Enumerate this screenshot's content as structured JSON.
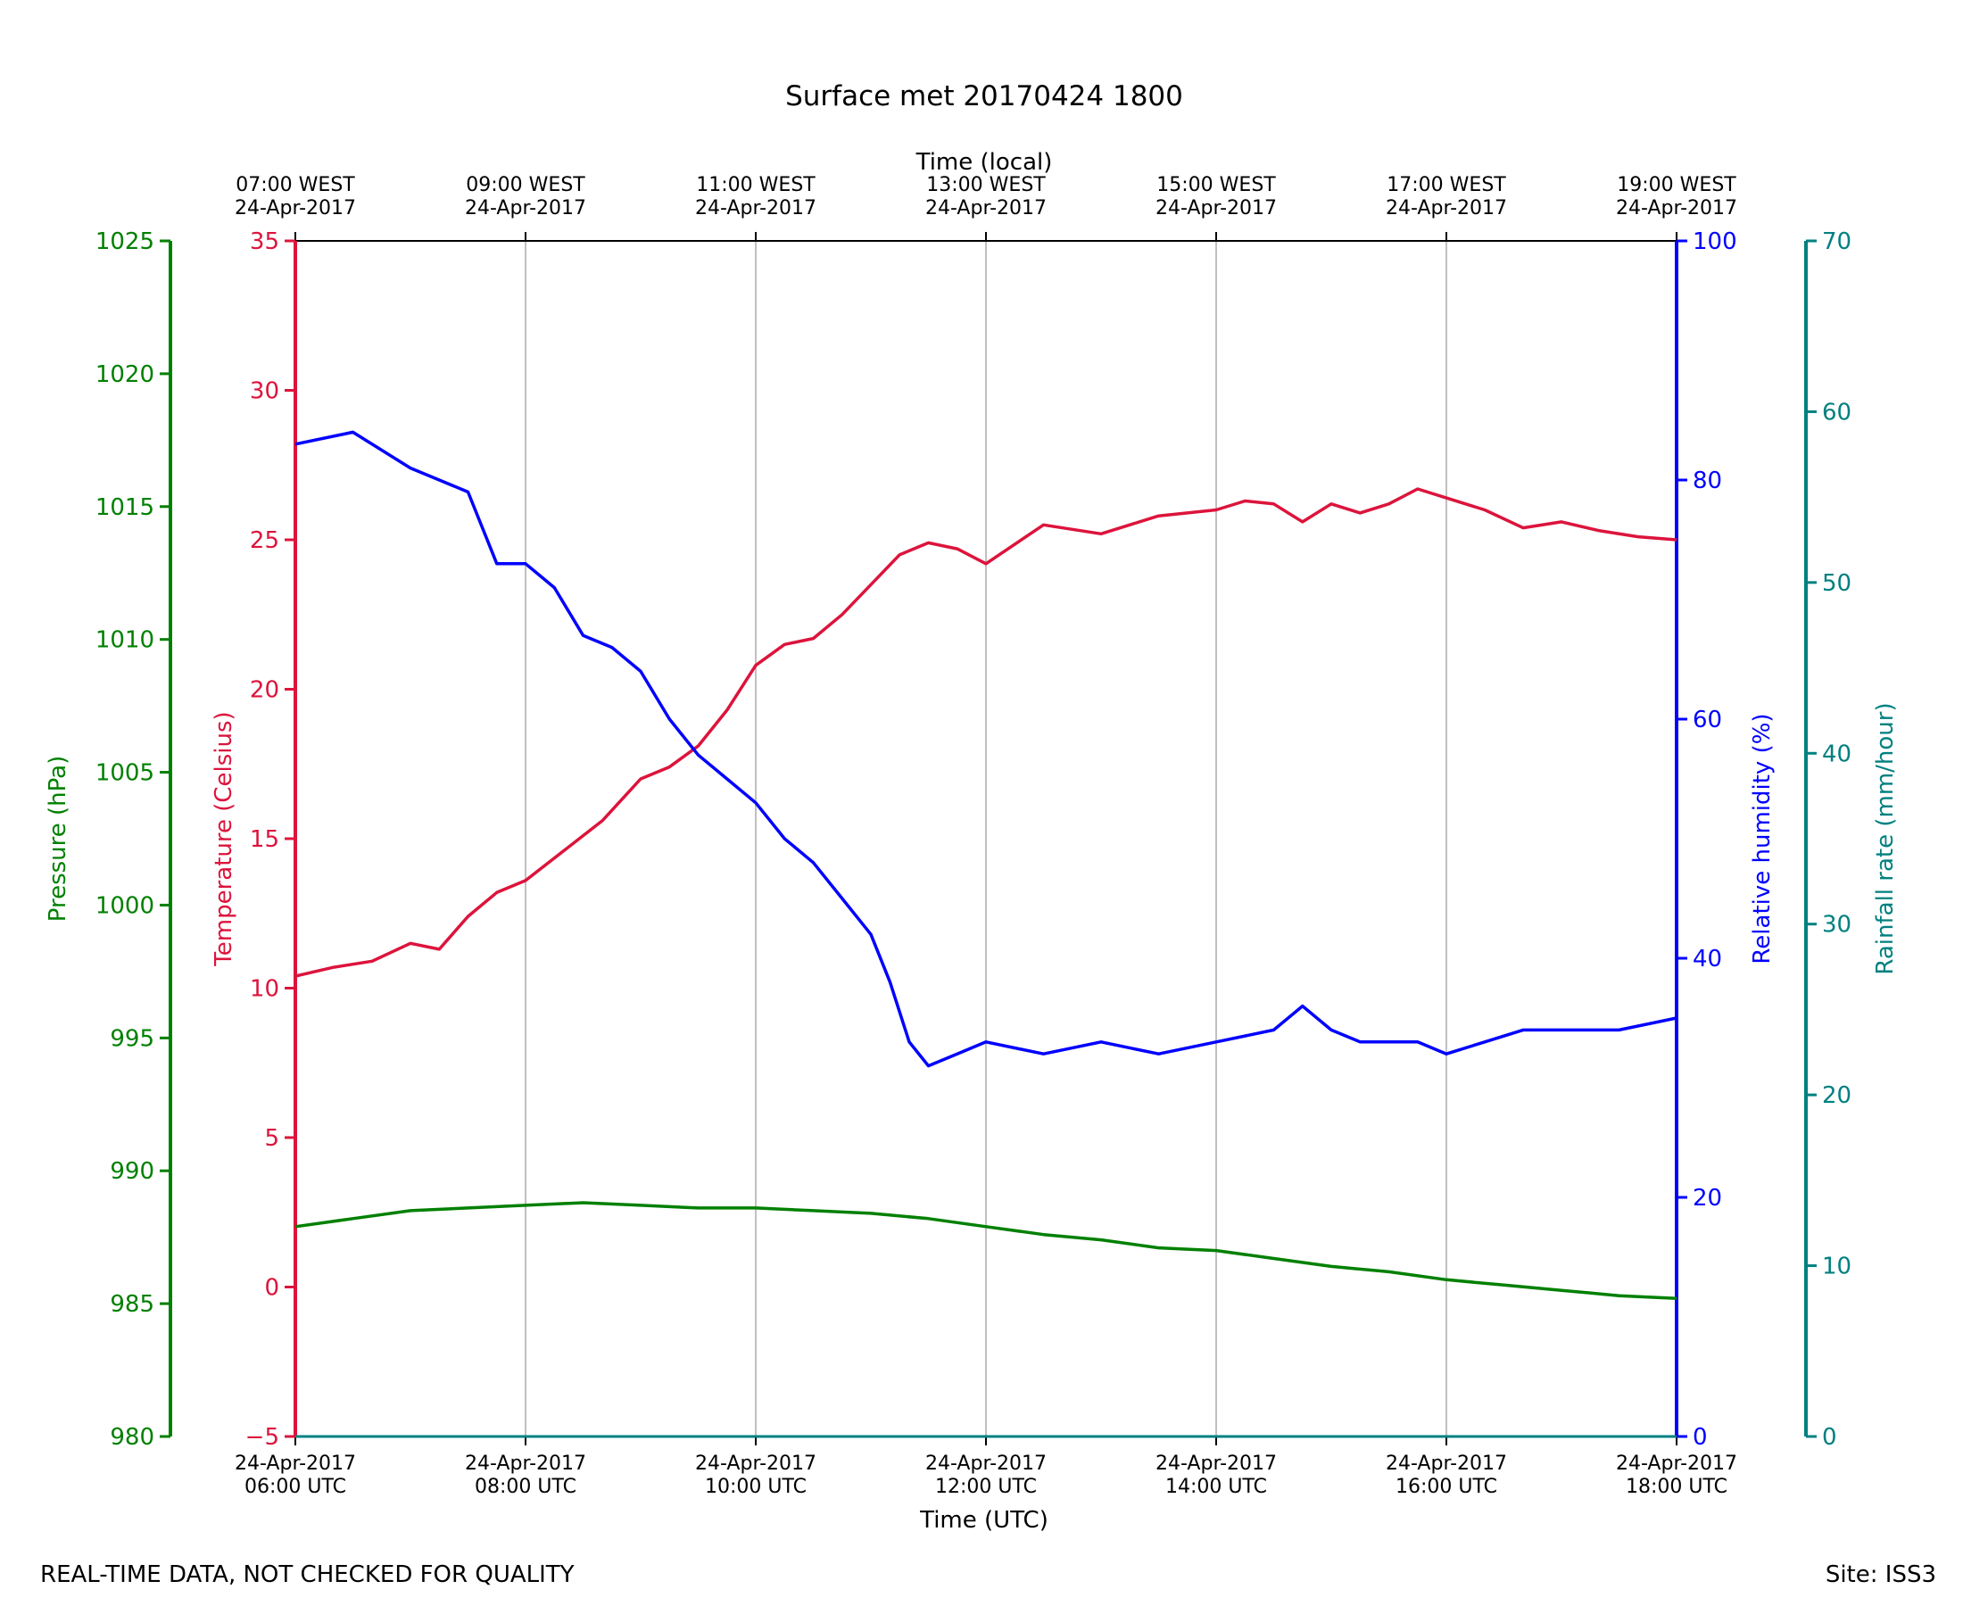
{
  "chart_data": {
    "type": "line",
    "title": "Surface met 20170424 1800",
    "top_axis": {
      "label": "Time (local)",
      "ticks": [
        {
          "x": "06:00",
          "line1": "07:00 WEST",
          "line2": "24-Apr-2017"
        },
        {
          "x": "08:00",
          "line1": "09:00 WEST",
          "line2": "24-Apr-2017"
        },
        {
          "x": "10:00",
          "line1": "11:00 WEST",
          "line2": "24-Apr-2017"
        },
        {
          "x": "12:00",
          "line1": "13:00 WEST",
          "line2": "24-Apr-2017"
        },
        {
          "x": "14:00",
          "line1": "15:00 WEST",
          "line2": "24-Apr-2017"
        },
        {
          "x": "16:00",
          "line1": "17:00 WEST",
          "line2": "24-Apr-2017"
        },
        {
          "x": "18:00",
          "line1": "19:00 WEST",
          "line2": "24-Apr-2017"
        }
      ]
    },
    "bottom_axis": {
      "label": "Time (UTC)",
      "xlim": [
        "06:00",
        "18:00"
      ],
      "ticks": [
        {
          "x": "06:00",
          "line1": "24-Apr-2017",
          "line2": "06:00 UTC"
        },
        {
          "x": "08:00",
          "line1": "24-Apr-2017",
          "line2": "08:00 UTC"
        },
        {
          "x": "10:00",
          "line1": "24-Apr-2017",
          "line2": "10:00 UTC"
        },
        {
          "x": "12:00",
          "line1": "24-Apr-2017",
          "line2": "12:00 UTC"
        },
        {
          "x": "14:00",
          "line1": "24-Apr-2017",
          "line2": "14:00 UTC"
        },
        {
          "x": "16:00",
          "line1": "24-Apr-2017",
          "line2": "16:00 UTC"
        },
        {
          "x": "18:00",
          "line1": "24-Apr-2017",
          "line2": "18:00 UTC"
        }
      ]
    },
    "grid": "vertical",
    "axes": {
      "pressure": {
        "label": "Pressure (hPa)",
        "color": "#008000",
        "ylim": [
          980,
          1025
        ],
        "ticks": [
          "980",
          "985",
          "990",
          "995",
          "1000",
          "1005",
          "1010",
          "1015",
          "1020",
          "1025"
        ]
      },
      "temperature": {
        "label": "Temperature (Celsius)",
        "color": "#dc143c",
        "ylim": [
          -5,
          35
        ],
        "ticks": [
          "−5",
          "0",
          "5",
          "10",
          "15",
          "20",
          "25",
          "30",
          "35"
        ]
      },
      "humidity": {
        "label": "Relative humidity (%)",
        "color": "#0000ff",
        "ylim": [
          0,
          100
        ],
        "ticks": [
          "0",
          "20",
          "40",
          "60",
          "80",
          "100"
        ]
      },
      "rainfall": {
        "label": "Rainfall rate (mm/hour)",
        "color": "#008080",
        "ylim": [
          0,
          70
        ],
        "ticks": [
          "0",
          "10",
          "20",
          "30",
          "40",
          "50",
          "60",
          "70"
        ]
      }
    },
    "series": [
      {
        "name": "Temperature (Celsius)",
        "axis": "temperature",
        "color": "#dc143c",
        "x": [
          "06:00",
          "06:20",
          "06:40",
          "07:00",
          "07:15",
          "07:30",
          "07:45",
          "08:00",
          "08:20",
          "08:40",
          "09:00",
          "09:15",
          "09:30",
          "09:45",
          "10:00",
          "10:15",
          "10:30",
          "10:45",
          "11:00",
          "11:15",
          "11:30",
          "11:45",
          "12:00",
          "12:30",
          "13:00",
          "13:30",
          "14:00",
          "14:15",
          "14:30",
          "14:45",
          "15:00",
          "15:15",
          "15:30",
          "15:45",
          "16:00",
          "16:20",
          "16:40",
          "17:00",
          "17:20",
          "17:40",
          "18:00"
        ],
        "values": [
          10.4,
          10.7,
          10.9,
          11.5,
          11.3,
          12.4,
          13.2,
          13.6,
          14.6,
          15.6,
          17.0,
          17.4,
          18.1,
          19.3,
          20.8,
          21.5,
          21.7,
          22.5,
          23.5,
          24.5,
          24.9,
          24.7,
          24.2,
          25.5,
          25.2,
          25.8,
          26.0,
          26.3,
          26.2,
          25.6,
          26.2,
          25.9,
          26.2,
          26.7,
          26.4,
          26.0,
          25.4,
          25.6,
          25.3,
          25.1,
          25.0
        ]
      },
      {
        "name": "Relative humidity (%)",
        "axis": "humidity",
        "color": "#0000ff",
        "x": [
          "06:00",
          "06:30",
          "07:00",
          "07:15",
          "07:30",
          "07:45",
          "08:00",
          "08:15",
          "08:30",
          "08:45",
          "09:00",
          "09:15",
          "09:30",
          "09:45",
          "10:00",
          "10:15",
          "10:30",
          "10:45",
          "11:00",
          "11:10",
          "11:20",
          "11:30",
          "11:45",
          "12:00",
          "12:30",
          "13:00",
          "13:30",
          "14:00",
          "14:30",
          "14:45",
          "15:00",
          "15:15",
          "15:30",
          "15:45",
          "16:00",
          "16:20",
          "16:40",
          "17:00",
          "17:30",
          "18:00"
        ],
        "values": [
          83,
          84,
          81,
          80,
          79,
          73,
          73,
          71,
          67,
          66,
          64,
          60,
          57,
          55,
          53,
          50,
          48,
          45,
          42,
          38,
          33,
          31,
          32,
          33,
          32,
          33,
          32,
          33,
          34,
          36,
          34,
          33,
          33,
          33,
          32,
          33,
          34,
          34,
          34,
          35
        ]
      },
      {
        "name": "Pressure (hPa)",
        "axis": "pressure",
        "color": "#008000",
        "x": [
          "06:00",
          "06:30",
          "07:00",
          "07:30",
          "08:00",
          "08:30",
          "09:00",
          "09:30",
          "10:00",
          "10:30",
          "11:00",
          "11:30",
          "12:00",
          "12:30",
          "13:00",
          "13:30",
          "14:00",
          "14:30",
          "15:00",
          "15:30",
          "16:00",
          "16:30",
          "17:00",
          "17:30",
          "18:00"
        ],
        "values": [
          987.9,
          988.2,
          988.5,
          988.6,
          988.7,
          988.8,
          988.7,
          988.6,
          988.6,
          988.5,
          988.4,
          988.2,
          987.9,
          987.6,
          987.4,
          987.1,
          987.0,
          986.7,
          986.4,
          986.2,
          985.9,
          985.7,
          985.5,
          985.3,
          985.2
        ]
      },
      {
        "name": "Rainfall rate (mm/hour)",
        "axis": "rainfall",
        "color": "#008080",
        "x": [
          "06:00",
          "18:00"
        ],
        "values": [
          0,
          0
        ]
      }
    ]
  },
  "footer": {
    "left": "REAL-TIME DATA, NOT CHECKED FOR QUALITY",
    "right": "Site: ISS3"
  }
}
